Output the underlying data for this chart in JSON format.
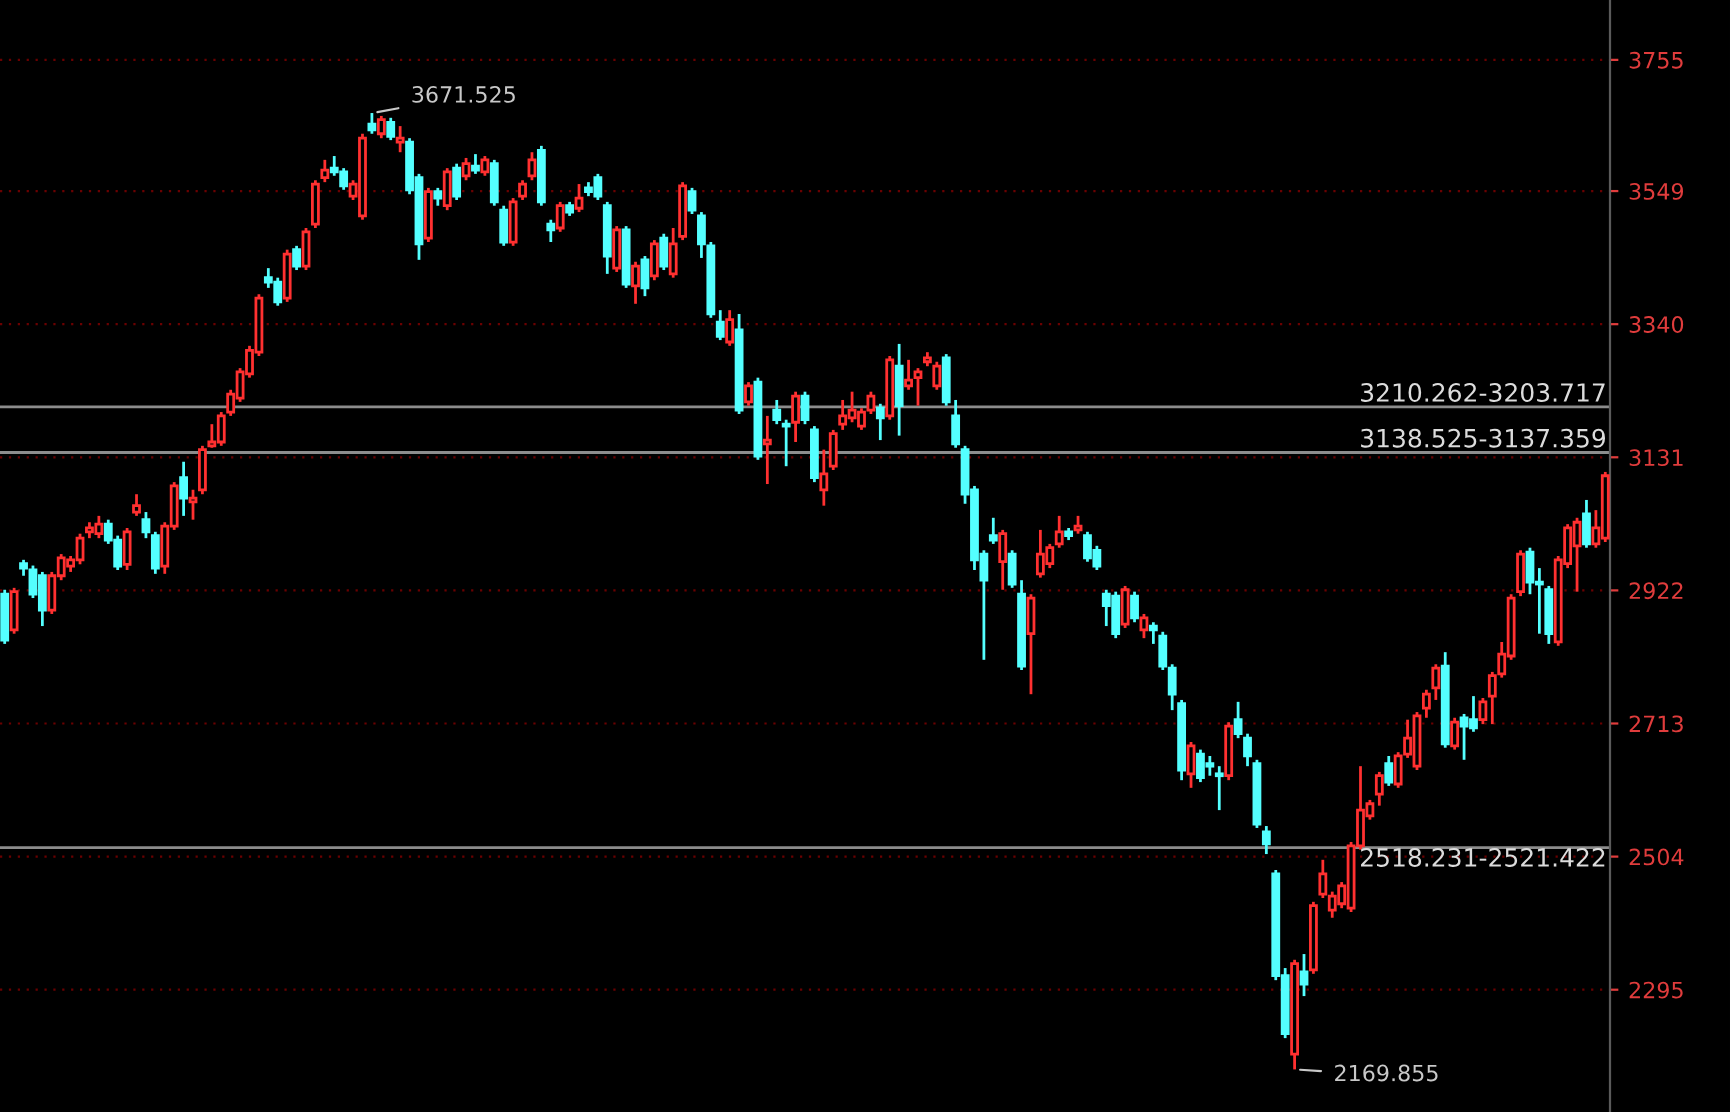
{
  "chart_data": {
    "type": "candlestick",
    "categories": [
      null,
      null,
      null,
      null,
      null,
      null,
      null,
      null,
      null,
      null,
      null,
      null,
      null,
      null,
      null,
      null,
      null,
      null,
      null,
      null,
      null,
      null,
      null,
      null,
      null,
      null,
      null,
      null,
      null,
      null,
      null,
      null,
      null,
      null,
      null,
      null,
      null,
      null,
      null,
      null,
      null,
      null,
      null,
      null,
      null,
      null,
      null,
      null,
      null,
      null,
      null,
      null,
      null,
      null,
      null,
      null,
      null,
      null,
      null,
      null,
      null,
      null,
      null,
      null,
      null,
      null,
      null,
      null,
      null,
      null,
      null,
      null,
      null,
      null,
      null,
      null,
      null,
      null,
      null,
      null,
      null,
      null,
      null,
      null,
      null,
      null,
      null,
      null,
      null,
      null,
      null,
      null,
      null,
      null,
      null,
      null,
      null,
      null,
      null,
      null,
      null,
      null,
      null,
      null,
      null,
      null,
      null,
      null,
      null,
      null,
      null,
      null,
      null,
      null,
      null,
      null,
      null,
      null,
      null,
      null,
      null,
      null,
      null,
      null,
      null,
      null,
      null,
      null,
      null,
      null,
      null,
      null,
      null,
      null,
      null,
      null,
      null,
      null,
      null,
      null,
      null,
      null,
      null,
      null,
      null,
      null,
      null,
      null,
      null,
      null,
      null,
      null,
      null,
      null,
      null,
      null,
      null,
      null,
      null,
      null,
      null,
      null,
      null,
      null,
      null,
      null,
      null,
      null,
      null,
      null,
      null
    ],
    "ohlc": [
      [
        2916,
        2923,
        2838,
        2844
      ],
      [
        2860,
        2926,
        2854,
        2920
      ],
      [
        2964,
        2970,
        2945,
        2957
      ],
      [
        2954,
        2961,
        2910,
        2916
      ],
      [
        2945,
        2951,
        2866,
        2891
      ],
      [
        2891,
        2951,
        2885,
        2945
      ],
      [
        2945,
        2979,
        2938,
        2973
      ],
      [
        2960,
        2976,
        2951,
        2970
      ],
      [
        2970,
        3011,
        2963,
        3004
      ],
      [
        3014,
        3029,
        3004,
        3020
      ],
      [
        3011,
        3039,
        3004,
        3026
      ],
      [
        3026,
        3033,
        2995,
        3001
      ],
      [
        3001,
        3008,
        2954,
        2960
      ],
      [
        2963,
        3020,
        2954,
        3014
      ],
      [
        3045,
        3073,
        3039,
        3055
      ],
      [
        3033,
        3045,
        3004,
        3014
      ],
      [
        3008,
        3014,
        2948,
        2957
      ],
      [
        2960,
        3029,
        2948,
        3023
      ],
      [
        3023,
        3092,
        3017,
        3086
      ],
      [
        3099,
        3124,
        3039,
        3067
      ],
      [
        3061,
        3080,
        3033,
        3067
      ],
      [
        3080,
        3149,
        3073,
        3143
      ],
      [
        3149,
        3183,
        3146,
        3155
      ],
      [
        3155,
        3202,
        3149,
        3196
      ],
      [
        3202,
        3237,
        3196,
        3230
      ],
      [
        3224,
        3271,
        3218,
        3265
      ],
      [
        3262,
        3306,
        3256,
        3299
      ],
      [
        3296,
        3387,
        3290,
        3381
      ],
      [
        3413,
        3428,
        3397,
        3406
      ],
      [
        3406,
        3413,
        3369,
        3375
      ],
      [
        3381,
        3457,
        3375,
        3450
      ],
      [
        3457,
        3463,
        3425,
        3431
      ],
      [
        3431,
        3491,
        3425,
        3485
      ],
      [
        3497,
        3566,
        3491,
        3560
      ],
      [
        3570,
        3598,
        3563,
        3582
      ],
      [
        3585,
        3604,
        3573,
        3579
      ],
      [
        3579,
        3585,
        3551,
        3557
      ],
      [
        3541,
        3566,
        3535,
        3560
      ],
      [
        3510,
        3639,
        3504,
        3632
      ],
      [
        3654,
        3671.525,
        3639,
        3645
      ],
      [
        3639,
        3667,
        3632,
        3661
      ],
      [
        3657,
        3664,
        3629,
        3635
      ],
      [
        3626,
        3651,
        3610,
        3632
      ],
      [
        3626,
        3632,
        3544,
        3551
      ],
      [
        3570,
        3576,
        3441,
        3466
      ],
      [
        3475,
        3554,
        3469,
        3548
      ],
      [
        3548,
        3554,
        3526,
        3538
      ],
      [
        3526,
        3585,
        3519,
        3579
      ],
      [
        3585,
        3592,
        3535,
        3541
      ],
      [
        3573,
        3601,
        3566,
        3592
      ],
      [
        3588,
        3607,
        3576,
        3582
      ],
      [
        3579,
        3604,
        3573,
        3598
      ],
      [
        3592,
        3598,
        3526,
        3532
      ],
      [
        3519,
        3526,
        3463,
        3469
      ],
      [
        3469,
        3538,
        3463,
        3532
      ],
      [
        3541,
        3566,
        3535,
        3560
      ],
      [
        3573,
        3610,
        3566,
        3598
      ],
      [
        3613,
        3620,
        3526,
        3532
      ],
      [
        3497,
        3504,
        3469,
        3488
      ],
      [
        3491,
        3532,
        3485,
        3526
      ],
      [
        3526,
        3532,
        3510,
        3516
      ],
      [
        3522,
        3560,
        3516,
        3538
      ],
      [
        3554,
        3563,
        3541,
        3548
      ],
      [
        3570,
        3576,
        3535,
        3541
      ],
      [
        3526,
        3532,
        3419,
        3447
      ],
      [
        3428,
        3494,
        3422,
        3488
      ],
      [
        3488,
        3494,
        3397,
        3403
      ],
      [
        3400,
        3438,
        3372,
        3431
      ],
      [
        3441,
        3447,
        3384,
        3397
      ],
      [
        3416,
        3472,
        3409,
        3466
      ],
      [
        3475,
        3482,
        3425,
        3431
      ],
      [
        3419,
        3491,
        3413,
        3466
      ],
      [
        3478,
        3563,
        3472,
        3557
      ],
      [
        3548,
        3554,
        3513,
        3519
      ],
      [
        3510,
        3516,
        3444,
        3466
      ],
      [
        3463,
        3469,
        3350,
        3356
      ],
      [
        3343,
        3362,
        3315,
        3321
      ],
      [
        3312,
        3362,
        3306,
        3347
      ],
      [
        3331,
        3356,
        3199,
        3205
      ],
      [
        3218,
        3249,
        3212,
        3243
      ],
      [
        3249,
        3256,
        3127,
        3133
      ],
      [
        3152,
        3196,
        3089,
        3158
      ],
      [
        3205,
        3221,
        3183,
        3190
      ],
      [
        3183,
        3190,
        3117,
        3180
      ],
      [
        3186,
        3234,
        3155,
        3227
      ],
      [
        3227,
        3234,
        3183,
        3190
      ],
      [
        3174,
        3180,
        3092,
        3099
      ],
      [
        3080,
        3143,
        3055,
        3105
      ],
      [
        3117,
        3174,
        3111,
        3168
      ],
      [
        3183,
        3221,
        3174,
        3196
      ],
      [
        3193,
        3234,
        3186,
        3205
      ],
      [
        3180,
        3208,
        3174,
        3202
      ],
      [
        3205,
        3234,
        3199,
        3227
      ],
      [
        3208,
        3215,
        3158,
        3193
      ],
      [
        3196,
        3290,
        3190,
        3284
      ],
      [
        3274,
        3309,
        3165,
        3212
      ],
      [
        3243,
        3284,
        3237,
        3252
      ],
      [
        3256,
        3271,
        3212,
        3265
      ],
      [
        3281,
        3296,
        3274,
        3287
      ],
      [
        3243,
        3281,
        3237,
        3274
      ],
      [
        3287,
        3293,
        3212,
        3218
      ],
      [
        3196,
        3221,
        3146,
        3152
      ],
      [
        3143,
        3149,
        3058,
        3073
      ],
      [
        3080,
        3086,
        2954,
        2970
      ],
      [
        2979,
        2985,
        2813,
        2938
      ],
      [
        3008,
        3036,
        2995,
        3001
      ],
      [
        2967,
        3017,
        2923,
        3011
      ],
      [
        2979,
        2985,
        2926,
        2932
      ],
      [
        2916,
        2938,
        2797,
        2803
      ],
      [
        2854,
        2916,
        2759,
        2910
      ],
      [
        2948,
        3017,
        2942,
        2979
      ],
      [
        2964,
        2995,
        2957,
        2989
      ],
      [
        2995,
        3039,
        2989,
        3014
      ],
      [
        3014,
        3020,
        3001,
        3008
      ],
      [
        3017,
        3039,
        3011,
        3023
      ],
      [
        3008,
        3014,
        2967,
        2973
      ],
      [
        2985,
        2992,
        2954,
        2960
      ],
      [
        2916,
        2923,
        2866,
        2898
      ],
      [
        2913,
        2920,
        2847,
        2854
      ],
      [
        2869,
        2929,
        2863,
        2923
      ],
      [
        2913,
        2920,
        2872,
        2879
      ],
      [
        2860,
        2885,
        2847,
        2879
      ],
      [
        2866,
        2872,
        2838,
        2860
      ],
      [
        2850,
        2857,
        2797,
        2803
      ],
      [
        2800,
        2806,
        2734,
        2759
      ],
      [
        2744,
        2750,
        2624,
        2640
      ],
      [
        2634,
        2684,
        2612,
        2678
      ],
      [
        2665,
        2672,
        2621,
        2628
      ],
      [
        2650,
        2662,
        2631,
        2646
      ],
      [
        2634,
        2646,
        2577,
        2631
      ],
      [
        2631,
        2715,
        2624,
        2709
      ],
      [
        2719,
        2747,
        2690,
        2697
      ],
      [
        2690,
        2697,
        2646,
        2662
      ],
      [
        2650,
        2656,
        2549,
        2555
      ],
      [
        2543,
        2552,
        2508,
        2524
      ],
      [
        2477,
        2483,
        2310,
        2317
      ],
      [
        2317,
        2329,
        2219,
        2226
      ],
      [
        2194,
        2342,
        2169.855,
        2336
      ],
      [
        2323,
        2351,
        2285,
        2304
      ],
      [
        2326,
        2433,
        2320,
        2427
      ],
      [
        2445,
        2499,
        2439,
        2477
      ],
      [
        2420,
        2449,
        2408,
        2442
      ],
      [
        2430,
        2464,
        2423,
        2458
      ],
      [
        2423,
        2527,
        2417,
        2521
      ],
      [
        2521,
        2646,
        2515,
        2577
      ],
      [
        2568,
        2593,
        2562,
        2587
      ],
      [
        2602,
        2637,
        2584,
        2631
      ],
      [
        2650,
        2662,
        2615,
        2621
      ],
      [
        2618,
        2668,
        2612,
        2662
      ],
      [
        2665,
        2719,
        2659,
        2690
      ],
      [
        2646,
        2731,
        2640,
        2725
      ],
      [
        2737,
        2766,
        2722,
        2759
      ],
      [
        2769,
        2806,
        2750,
        2800
      ],
      [
        2803,
        2825,
        2675,
        2681
      ],
      [
        2678,
        2722,
        2672,
        2715
      ],
      [
        2722,
        2728,
        2656,
        2709
      ],
      [
        2719,
        2756,
        2700,
        2706
      ],
      [
        2719,
        2753,
        2712,
        2747
      ],
      [
        2756,
        2794,
        2712,
        2788
      ],
      [
        2791,
        2841,
        2785,
        2822
      ],
      [
        2819,
        2916,
        2813,
        2910
      ],
      [
        2920,
        2985,
        2913,
        2979
      ],
      [
        2982,
        2989,
        2916,
        2935
      ],
      [
        2935,
        2957,
        2854,
        2932
      ],
      [
        2923,
        2929,
        2838,
        2854
      ],
      [
        2841,
        2976,
        2835,
        2970
      ],
      [
        2964,
        3026,
        2957,
        3020
      ],
      [
        2992,
        3036,
        2920,
        3029
      ],
      [
        3042,
        3064,
        2989,
        2995
      ],
      [
        2995,
        3048,
        2989,
        3020
      ],
      [
        3004,
        3108,
        2998,
        3102
      ]
    ],
    "colors": [
      "#54ffff",
      "#ff3030",
      "#54ffff",
      "#54ffff",
      "#54ffff",
      "#ff3030",
      "#ff3030",
      "#ff3030",
      "#ff3030",
      "#ff3030",
      "#ff3030",
      "#54ffff",
      "#54ffff",
      "#ff3030",
      "#ff3030",
      "#54ffff",
      "#54ffff",
      "#ff3030",
      "#ff3030",
      "#54ffff",
      "#ff3030",
      "#ff3030",
      "#ff3030",
      "#ff3030",
      "#ff3030",
      "#ff3030",
      "#ff3030",
      "#ff3030",
      "#54ffff",
      "#54ffff",
      "#ff3030",
      "#54ffff",
      "#ff3030",
      "#ff3030",
      "#ff3030",
      "#54ffff",
      "#54ffff",
      "#ff3030",
      "#ff3030",
      "#54ffff",
      "#ff3030",
      "#54ffff",
      "#ff3030",
      "#54ffff",
      "#54ffff",
      "#ff3030",
      "#54ffff",
      "#ff3030",
      "#54ffff",
      "#ff3030",
      "#54ffff",
      "#ff3030",
      "#54ffff",
      "#54ffff",
      "#ff3030",
      "#ff3030",
      "#ff3030",
      "#54ffff",
      "#54ffff",
      "#ff3030",
      "#54ffff",
      "#ff3030",
      "#54ffff",
      "#54ffff",
      "#54ffff",
      "#ff3030",
      "#54ffff",
      "#ff3030",
      "#54ffff",
      "#ff3030",
      "#54ffff",
      "#ff3030",
      "#ff3030",
      "#54ffff",
      "#54ffff",
      "#54ffff",
      "#54ffff",
      "#ff3030",
      "#54ffff",
      "#ff3030",
      "#54ffff",
      "#ff3030",
      "#54ffff",
      "#54ffff",
      "#ff3030",
      "#54ffff",
      "#54ffff",
      "#ff3030",
      "#ff3030",
      "#ff3030",
      "#ff3030",
      "#ff3030",
      "#ff3030",
      "#54ffff",
      "#ff3030",
      "#54ffff",
      "#ff3030",
      "#ff3030",
      "#ff3030",
      "#ff3030",
      "#54ffff",
      "#54ffff",
      "#54ffff",
      "#54ffff",
      "#54ffff",
      "#54ffff",
      "#ff3030",
      "#54ffff",
      "#54ffff",
      "#ff3030",
      "#ff3030",
      "#ff3030",
      "#ff3030",
      "#54ffff",
      "#ff3030",
      "#54ffff",
      "#54ffff",
      "#54ffff",
      "#54ffff",
      "#ff3030",
      "#54ffff",
      "#ff3030",
      "#54ffff",
      "#54ffff",
      "#54ffff",
      "#54ffff",
      "#ff3030",
      "#54ffff",
      "#54ffff",
      "#54ffff",
      "#ff3030",
      "#54ffff",
      "#54ffff",
      "#54ffff",
      "#54ffff",
      "#54ffff",
      "#54ffff",
      "#ff3030",
      "#54ffff",
      "#ff3030",
      "#ff3030",
      "#ff3030",
      "#ff3030",
      "#ff3030",
      "#ff3030",
      "#ff3030",
      "#ff3030",
      "#54ffff",
      "#ff3030",
      "#ff3030",
      "#ff3030",
      "#ff3030",
      "#ff3030",
      "#54ffff",
      "#ff3030",
      "#54ffff",
      "#54ffff",
      "#ff3030",
      "#ff3030",
      "#ff3030",
      "#ff3030",
      "#ff3030",
      "#54ffff",
      "#54ffff",
      "#54ffff",
      "#ff3030",
      "#ff3030",
      "#ff3030",
      "#54ffff",
      "#ff3030",
      "#ff3030"
    ],
    "ylim": [
      2103,
      3849
    ],
    "yticks": [
      {
        "value": 2295,
        "label": "2295"
      },
      {
        "value": 2504,
        "label": "2504"
      },
      {
        "value": 2713,
        "label": "2713"
      },
      {
        "value": 2922,
        "label": "2922"
      },
      {
        "value": 3131,
        "label": "3131"
      },
      {
        "value": 3340,
        "label": "3340"
      },
      {
        "value": 3549,
        "label": "3549"
      },
      {
        "value": 3755,
        "label": "3755"
      }
    ],
    "tick_labels": "y",
    "grid": "y",
    "ref_lines": [
      {
        "axis": "y",
        "value": 3210.262,
        "label": "3210.262-3203.717",
        "color": "#8c8c8c"
      },
      {
        "axis": "y",
        "value": 3138.525,
        "label": "3138.525-3137.359",
        "color": "#8c8c8c"
      },
      {
        "axis": "y",
        "value": 2518.231,
        "label": "2518.231-2521.422",
        "color": "#8c8c8c"
      }
    ],
    "annotations": [
      "3671.525",
      "2169.855"
    ]
  }
}
